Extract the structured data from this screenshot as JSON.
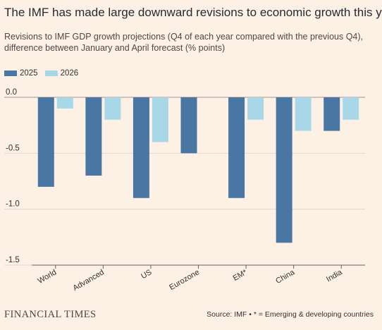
{
  "header": {
    "title": "The IMF has made large downward revisions to economic growth this year",
    "subtitle": "Revisions to IMF GDP growth projections (Q4 of each year compared with the previous Q4), difference between January and April forecast (% points)"
  },
  "footer": {
    "brand": "FINANCIAL TIMES",
    "source": "Source: IMF • * = Emerging & developing countries"
  },
  "colors": {
    "series_2025": "#4a76a4",
    "series_2026": "#a8d8e8",
    "background": "#fdf1e6",
    "grid": "#e0d6cc"
  },
  "chart_data": {
    "type": "bar",
    "categories": [
      "World",
      "Advanced",
      "US",
      "Eurozone",
      "EM*",
      "China",
      "India"
    ],
    "series": [
      {
        "name": "2025",
        "values": [
          -0.8,
          -0.7,
          -0.9,
          -0.5,
          -0.9,
          -1.3,
          -0.3
        ]
      },
      {
        "name": "2026",
        "values": [
          -0.1,
          -0.2,
          -0.4,
          null,
          -0.2,
          -0.3,
          -0.2
        ]
      }
    ],
    "ylim": [
      -1.5,
      0
    ],
    "yticks": [
      0,
      -0.5,
      -1.0,
      -1.5
    ],
    "ytick_labels": [
      "0.0",
      "-0.5",
      "-1.0",
      "-1.5"
    ],
    "legend": "top-left",
    "grid": true
  }
}
